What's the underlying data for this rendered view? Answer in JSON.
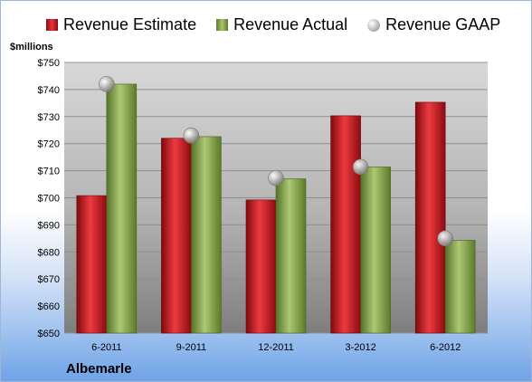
{
  "legend": {
    "estimate": "Revenue Estimate",
    "actual": "Revenue Actual",
    "gaap": "Revenue GAAP"
  },
  "unit_label": "$millions",
  "company": "Albemarle",
  "colors": {
    "estimate": "#c8161d",
    "actual": "#8aaa4b",
    "gaap": "#b9b9b9"
  },
  "chart_data": {
    "type": "bar",
    "categories": [
      "6-2011",
      "9-2011",
      "12-2011",
      "3-2012",
      "6-2012"
    ],
    "y_ticks": [
      "$650",
      "$660",
      "$670",
      "$680",
      "$690",
      "$700",
      "$710",
      "$720",
      "$730",
      "$740",
      "$750"
    ],
    "ylim": [
      650,
      750
    ],
    "series": [
      {
        "name": "Revenue Estimate",
        "kind": "bar",
        "values": [
          700.8,
          722.0,
          699.2,
          730.3,
          735.3
        ]
      },
      {
        "name": "Revenue Actual",
        "kind": "bar",
        "values": [
          742.0,
          722.6,
          707.0,
          711.4,
          684.3
        ]
      },
      {
        "name": "Revenue GAAP",
        "kind": "marker",
        "values": [
          742.0,
          723.0,
          707.3,
          711.4,
          685.0
        ]
      }
    ],
    "ylabel": "$millions",
    "xlabel": "",
    "grid": true,
    "legend_position": "top"
  }
}
